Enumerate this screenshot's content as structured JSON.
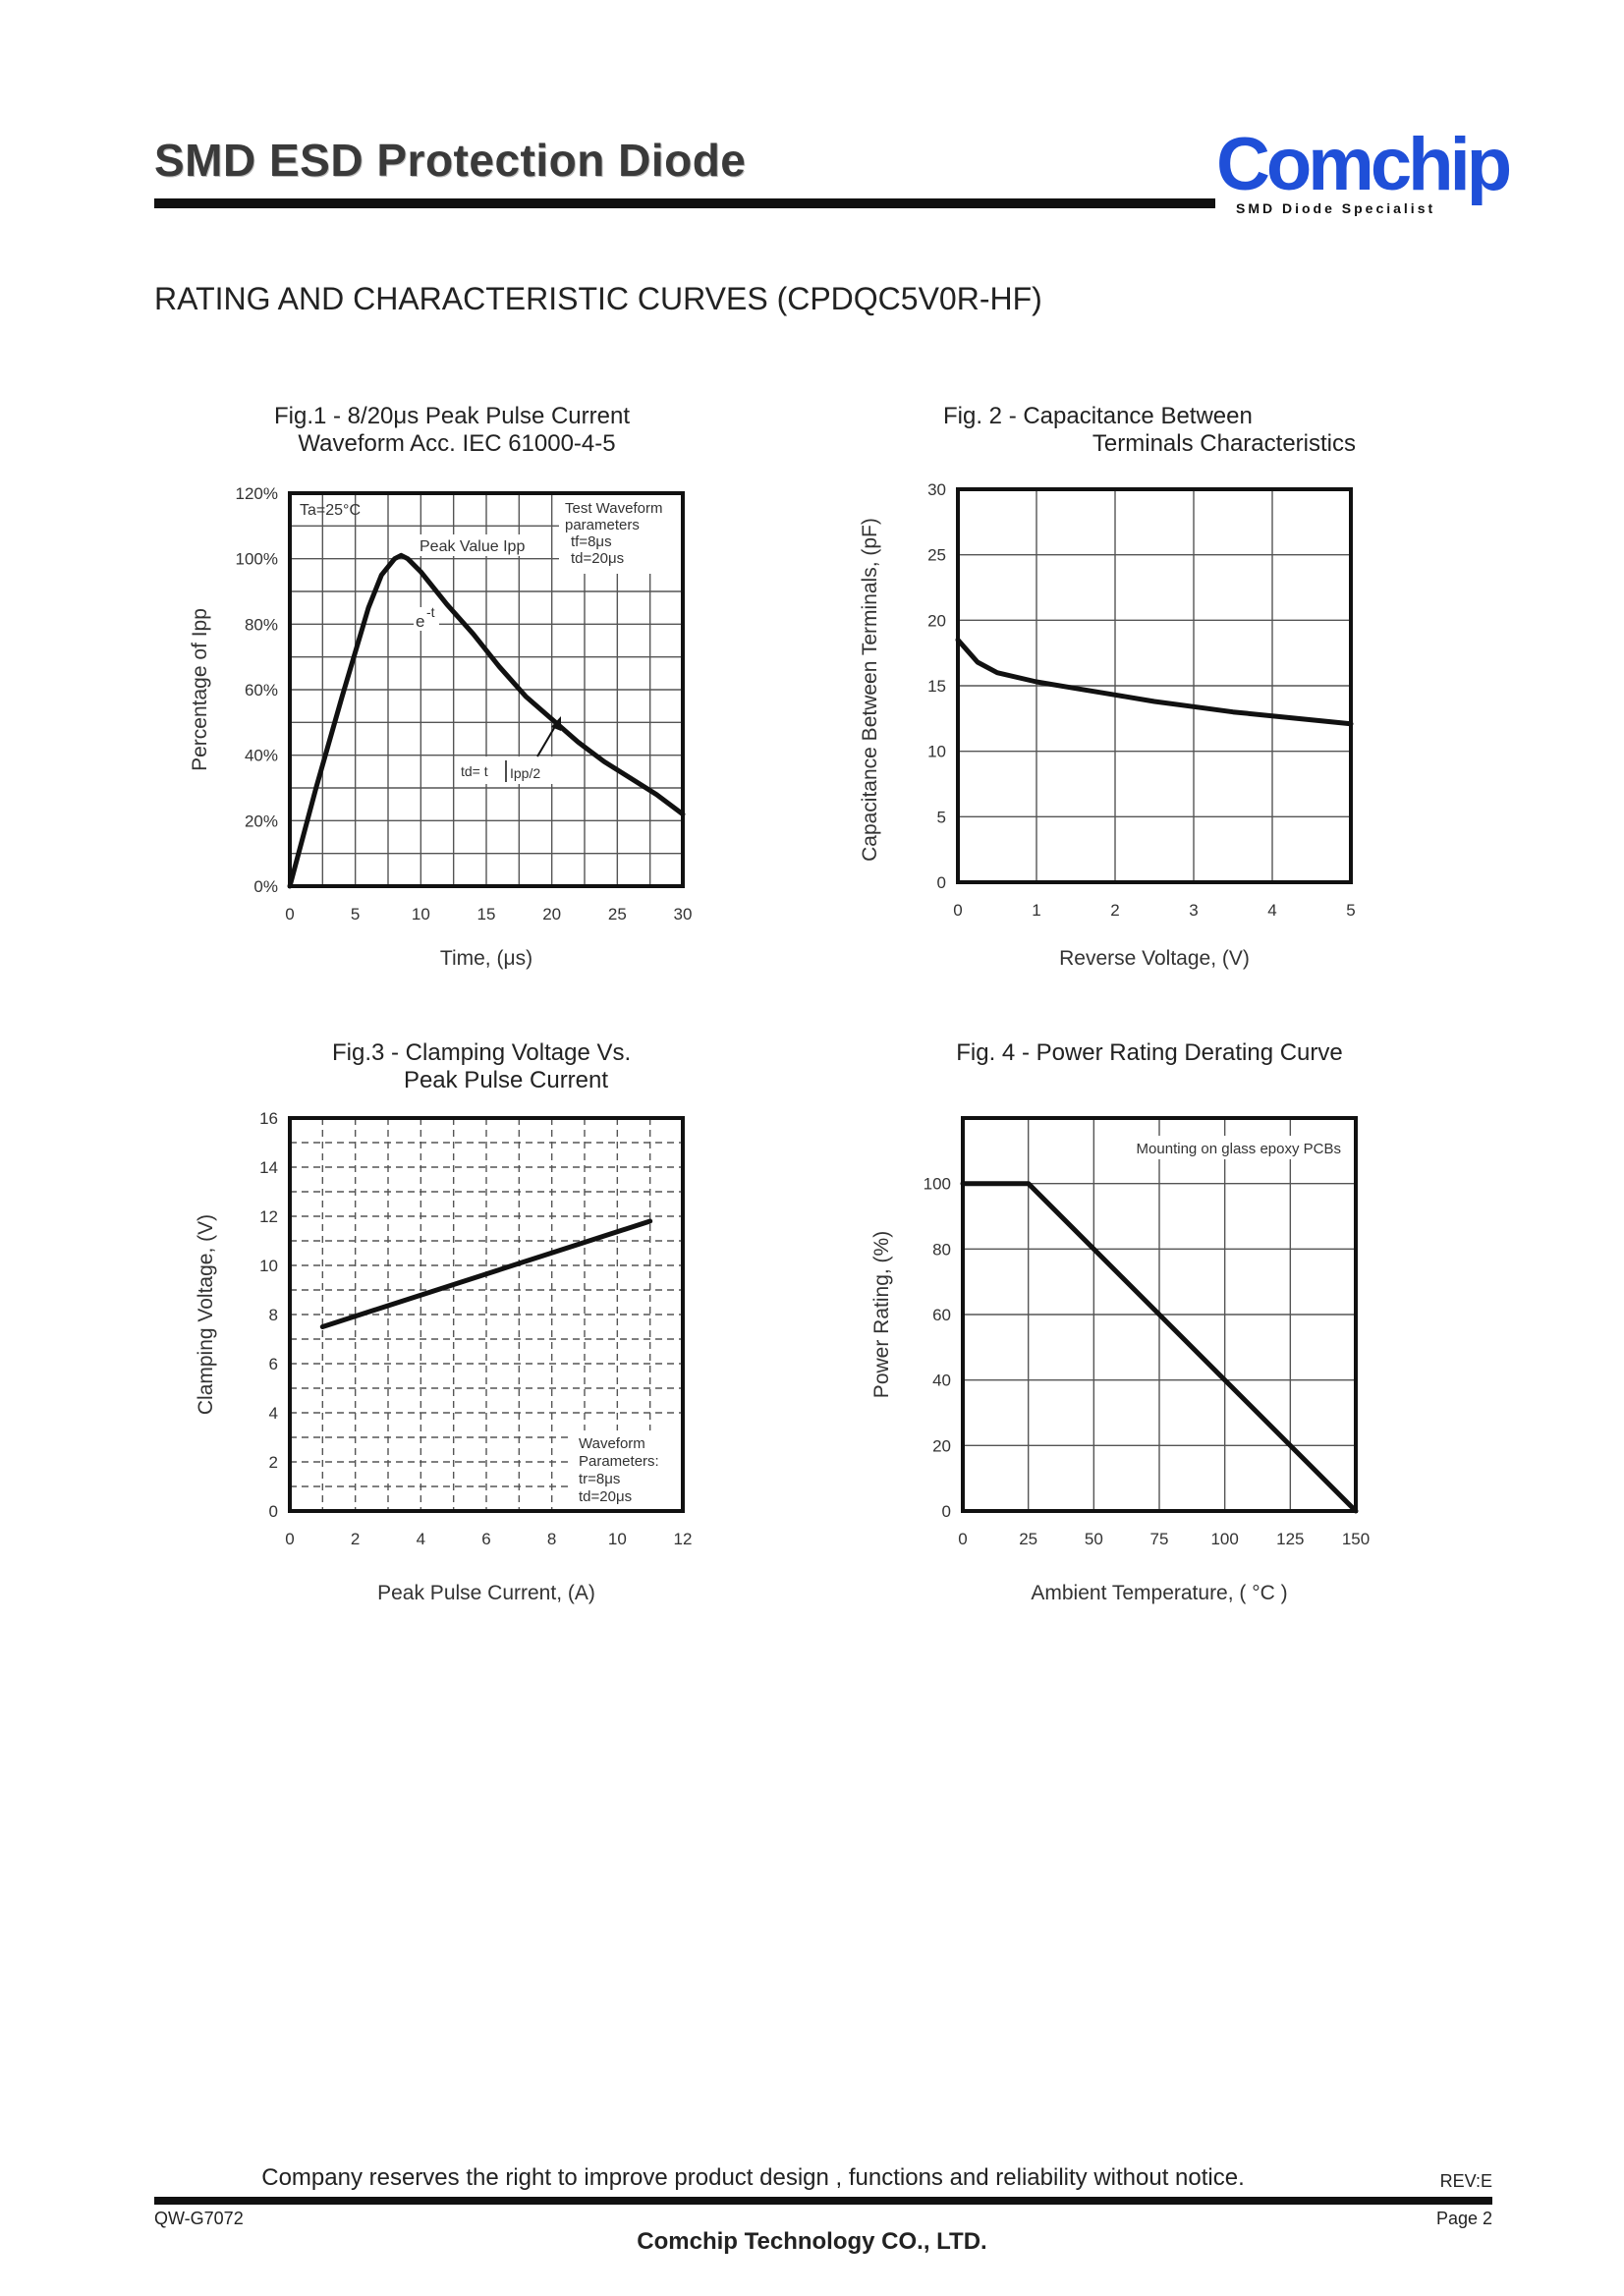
{
  "header": {
    "title": "SMD ESD Protection Diode",
    "logo_text": "Comchip",
    "logo_tagline": "SMD Diode Specialist"
  },
  "section_heading": "RATING AND CHARACTERISTIC CURVES (CPDQC5V0R-HF)",
  "footer": {
    "note": "Company reserves the right to improve product design , functions and reliability without notice.",
    "rev": "REV:E",
    "doc_code": "QW-G7072",
    "page": "Page 2",
    "company": "Comchip Technology CO., LTD."
  },
  "colors": {
    "logo_blue": "#1f4fd8",
    "grid": "#444444",
    "curve": "#111111"
  },
  "chart_data": [
    {
      "id": "fig1",
      "type": "line",
      "title": [
        "Fig.1 - 8/20μs Peak Pulse Current",
        "Waveform Acc. IEC 61000-4-5"
      ],
      "xlabel": "Time, (μs)",
      "ylabel": "Percentage of Ipp",
      "xlim": [
        0,
        30
      ],
      "ylim": [
        0,
        120
      ],
      "xticks": [
        "0",
        "5",
        "10",
        "15",
        "20",
        "25",
        "30"
      ],
      "yticks": [
        "0%",
        "20%",
        "40%",
        "60%",
        "80%",
        "100%",
        "120%"
      ],
      "grid": "solid",
      "annotations": {
        "ta": "Ta=25°C",
        "test_box": [
          "Test Waveform",
          "parameters",
          "tf=8μs",
          "td=20μs"
        ],
        "peak": "Peak Value Ipp",
        "exp": "e",
        "exp_sup": "-t",
        "td_left": "td= t",
        "td_right": "Ipp/2"
      },
      "series": [
        {
          "x": [
            0,
            2,
            4,
            6,
            7,
            8,
            8.5,
            9,
            10,
            12,
            14,
            16,
            18,
            20,
            22,
            24,
            26,
            28,
            30
          ],
          "y": [
            0,
            30,
            58,
            85,
            95,
            100,
            101,
            100,
            96,
            86,
            77,
            67,
            58,
            51,
            44,
            38,
            33,
            28,
            22
          ]
        }
      ]
    },
    {
      "id": "fig2",
      "type": "line",
      "title": [
        "Fig. 2 - Capacitance Between",
        "Terminals Characteristics"
      ],
      "xlabel": "Reverse Voltage, (V)",
      "ylabel": "Capacitance Between Terminals, (pF)",
      "xlim": [
        0,
        5
      ],
      "ylim": [
        0,
        30
      ],
      "xticks": [
        "0",
        "1",
        "2",
        "3",
        "4",
        "5"
      ],
      "yticks": [
        "0",
        "5",
        "10",
        "15",
        "20",
        "25",
        "30"
      ],
      "grid": "solid",
      "series": [
        {
          "x": [
            0,
            0.25,
            0.5,
            1,
            1.5,
            2,
            2.5,
            3,
            3.5,
            4,
            4.5,
            5
          ],
          "y": [
            18.5,
            16.8,
            16.0,
            15.3,
            14.8,
            14.3,
            13.8,
            13.4,
            13.0,
            12.7,
            12.4,
            12.1
          ]
        }
      ]
    },
    {
      "id": "fig3",
      "type": "line",
      "title": [
        "Fig.3 - Clamping Voltage Vs.",
        "Peak Pulse Current"
      ],
      "xlabel": "Peak Pulse Current, (A)",
      "ylabel": "Clamping Voltage, (V)",
      "xlim": [
        0,
        12
      ],
      "ylim": [
        0,
        16
      ],
      "xticks": [
        "0",
        "2",
        "4",
        "6",
        "8",
        "10",
        "12"
      ],
      "yticks": [
        "0",
        "2",
        "4",
        "6",
        "8",
        "10",
        "12",
        "14",
        "16"
      ],
      "grid": "dashed",
      "annotations": {
        "wave_box": [
          "Waveform",
          "Parameters:",
          "tr=8μs",
          "td=20μs"
        ]
      },
      "series": [
        {
          "x": [
            1,
            11
          ],
          "y": [
            7.5,
            11.8
          ]
        }
      ]
    },
    {
      "id": "fig4",
      "type": "line",
      "title": [
        "Fig. 4 - Power Rating Derating Curve"
      ],
      "xlabel": "Ambient Temperature, ( °C )",
      "ylabel": "Power Rating, (%)",
      "xlim": [
        0,
        150
      ],
      "ylim": [
        0,
        120
      ],
      "xticks": [
        "0",
        "25",
        "50",
        "75",
        "100",
        "125",
        "150"
      ],
      "yticks": [
        "0",
        "20",
        "40",
        "60",
        "80",
        "100"
      ],
      "grid": "solid",
      "annotations": {
        "note": "Mounting on glass epoxy PCBs"
      },
      "series": [
        {
          "x": [
            0,
            25,
            150
          ],
          "y": [
            100,
            100,
            0
          ]
        }
      ]
    }
  ]
}
